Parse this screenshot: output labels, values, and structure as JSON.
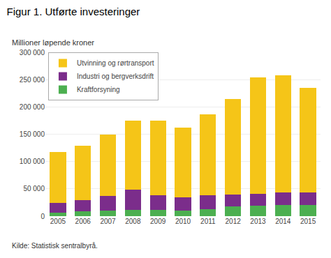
{
  "chart_data": {
    "type": "bar",
    "stacked": true,
    "title": "Figur 1. Utførte investeringer",
    "ylabel": "Millioner løpende kroner",
    "annotations": [
      "Kilde: Statistisk sentralbyrå."
    ],
    "categories": [
      "2005",
      "2006",
      "2007",
      "2008",
      "2009",
      "2010",
      "2011",
      "2012",
      "2013",
      "2014",
      "2015"
    ],
    "series": [
      {
        "name": "Kraftforsyning",
        "color": "#4CAF50",
        "values": [
          7000,
          9000,
          10000,
          11000,
          11000,
          10000,
          13000,
          18000,
          19000,
          21000,
          21000
        ]
      },
      {
        "name": "Industri og bergverksdrift",
        "color": "#7B2D8B",
        "values": [
          17000,
          20000,
          27000,
          37000,
          27000,
          24000,
          25000,
          22000,
          22000,
          23000,
          22000
        ]
      },
      {
        "name": "Utvinning og rørtransport",
        "color": "#F5C518",
        "values": [
          93000,
          100000,
          113000,
          127000,
          137000,
          128000,
          148000,
          175000,
          213000,
          214000,
          192000
        ]
      }
    ],
    "ylim": [
      0,
      300000
    ],
    "yticks": [
      0,
      {
        "value": 50000,
        "label": "50 000"
      },
      {
        "value": 100000,
        "label": "100 000"
      },
      {
        "value": 150000,
        "label": "150 000"
      },
      {
        "value": 200000,
        "label": "200 000"
      },
      {
        "value": 250000,
        "label": "250 000"
      },
      {
        "value": 300000,
        "label": "300 000"
      }
    ],
    "grid": true,
    "legend": "upper left"
  }
}
